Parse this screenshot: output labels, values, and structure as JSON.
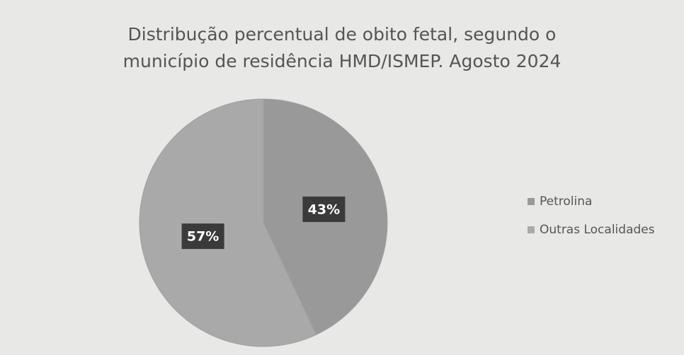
{
  "chart_data": {
    "type": "pie",
    "title": "Distribução percentual de obito fetal, segundo o município de residência HMD/ISMEP. Agosto 2024",
    "categories": [
      "Petrolina",
      "Outras Localidades"
    ],
    "values": [
      43,
      57
    ],
    "value_labels": [
      "43%",
      "57%"
    ],
    "colors": [
      "#999999",
      "#a9a9a9"
    ],
    "legend": "right"
  }
}
